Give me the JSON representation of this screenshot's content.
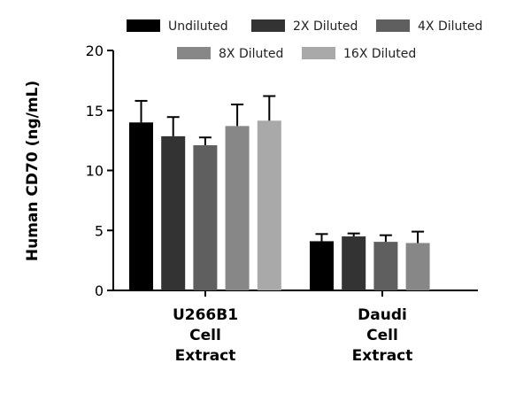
{
  "chart_data": {
    "type": "bar",
    "ylabel": "Human CD70 (ng/mL)",
    "ylim": [
      0,
      20
    ],
    "yticks": [
      "0",
      "5",
      "10",
      "15",
      "20"
    ],
    "grid": false,
    "legend_position": "top",
    "categories": [
      [
        "U266B1",
        "Cell",
        "Extract"
      ],
      [
        "Daudi",
        "Cell",
        "Extract"
      ]
    ],
    "series": [
      {
        "name": "Undiluted",
        "color": "#000000",
        "values": [
          14.0,
          4.1
        ],
        "errors": [
          1.8,
          0.6
        ]
      },
      {
        "name": "2X Diluted",
        "color": "#333333",
        "values": [
          12.85,
          4.5
        ],
        "errors": [
          1.6,
          0.25
        ]
      },
      {
        "name": "4X Diluted",
        "color": "#5f5f5f",
        "values": [
          12.1,
          4.05
        ],
        "errors": [
          0.65,
          0.55
        ]
      },
      {
        "name": "8X Diluted",
        "color": "#878787",
        "values": [
          13.7,
          3.95
        ],
        "errors": [
          1.8,
          0.95
        ]
      },
      {
        "name": "16X Diluted",
        "color": "#a9a9a9",
        "values": [
          14.15,
          null
        ],
        "errors": [
          2.05,
          null
        ]
      }
    ]
  }
}
